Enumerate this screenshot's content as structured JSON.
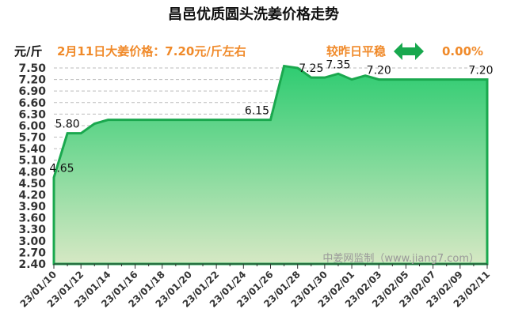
{
  "chart_data": {
    "type": "area",
    "title": "昌邑优质圆头洗姜价格走势",
    "ylabel": "元/斤",
    "subtitle": "2月11日大姜价格：7.20元/斤左右",
    "change_text": "较昨日平稳",
    "change_icon": "double-arrow-horizontal-icon",
    "change_value": "0.00%",
    "watermark": "中姜网监制（www.jiang7.com）",
    "ylim": [
      2.4,
      7.5
    ],
    "yticks": [
      "2.40",
      "2.70",
      "3.00",
      "3.30",
      "3.60",
      "3.90",
      "4.20",
      "4.50",
      "4.80",
      "5.10",
      "5.40",
      "5.70",
      "6.00",
      "6.30",
      "6.60",
      "6.90",
      "7.20",
      "7.50"
    ],
    "xticks": [
      "23/01/10",
      "23/01/12",
      "23/01/14",
      "23/01/16",
      "23/01/18",
      "23/01/20",
      "23/01/22",
      "23/01/24",
      "23/01/26",
      "23/01/28",
      "23/01/30",
      "23/02/01",
      "23/02/03",
      "23/02/05",
      "23/02/07",
      "23/02/09",
      "23/02/11"
    ],
    "x": [
      "23/01/10",
      "23/01/11",
      "23/01/12",
      "23/01/13",
      "23/01/14",
      "23/01/15",
      "23/01/16",
      "23/01/17",
      "23/01/18",
      "23/01/19",
      "23/01/20",
      "23/01/21",
      "23/01/22",
      "23/01/23",
      "23/01/24",
      "23/01/25",
      "23/01/26",
      "23/01/27",
      "23/01/28",
      "23/01/29",
      "23/01/30",
      "23/01/31",
      "23/02/01",
      "23/02/02",
      "23/02/03",
      "23/02/04",
      "23/02/05",
      "23/02/06",
      "23/02/07",
      "23/02/08",
      "23/02/09",
      "23/02/10",
      "23/02/11"
    ],
    "values": [
      4.65,
      5.8,
      5.8,
      6.05,
      6.15,
      6.15,
      6.15,
      6.15,
      6.15,
      6.15,
      6.15,
      6.15,
      6.15,
      6.15,
      6.15,
      6.15,
      6.15,
      7.55,
      7.5,
      7.25,
      7.25,
      7.35,
      7.2,
      7.3,
      7.2,
      7.2,
      7.2,
      7.2,
      7.2,
      7.2,
      7.2,
      7.2,
      7.2
    ],
    "data_labels": [
      {
        "x": "23/01/10",
        "text": "4.65"
      },
      {
        "x": "23/01/11",
        "text": "5.80"
      },
      {
        "x": "23/01/25",
        "text": "6.15"
      },
      {
        "x": "23/01/29",
        "text": "7.25"
      },
      {
        "x": "23/01/31",
        "text": "7.35"
      },
      {
        "x": "23/02/03",
        "text": "7.20"
      },
      {
        "x": "23/02/11",
        "text": "7.20"
      }
    ],
    "grid": true,
    "colors": {
      "line": "#1aa84e",
      "fill_top": "#2ecc71",
      "fill_bottom": "#d6e8c4",
      "accent": "#f08a2a"
    }
  }
}
